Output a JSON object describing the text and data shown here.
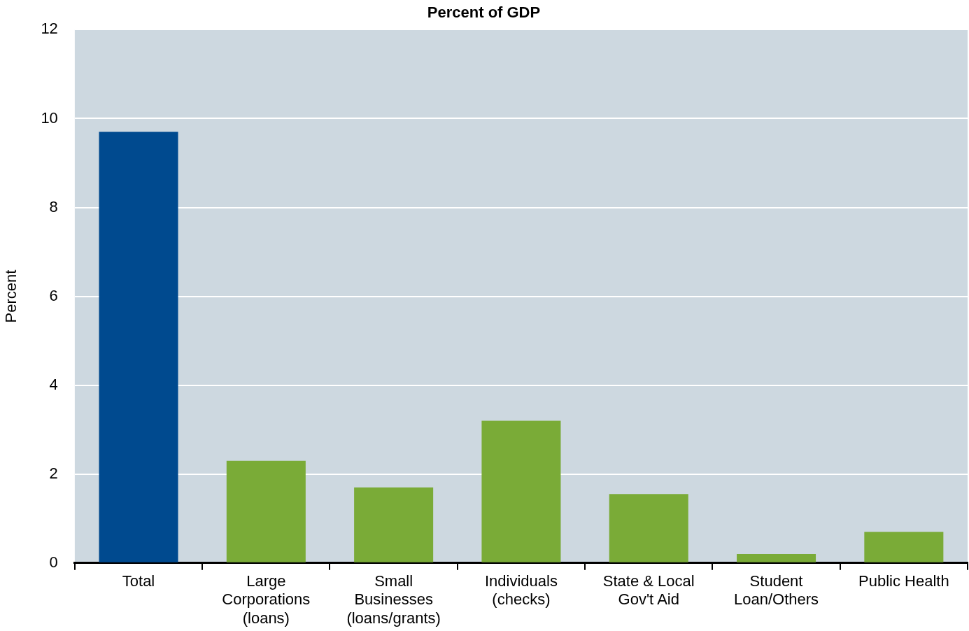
{
  "chart_data": {
    "type": "bar",
    "title": "Percent of GDP",
    "ylabel": "Percent",
    "categories": [
      "Total",
      "Large Corporations (loans)",
      "Small Businesses (loans/grants)",
      "Individuals (checks)",
      "State & Local Gov't Aid",
      "Student Loan/Others",
      "Public Health"
    ],
    "values": [
      9.7,
      2.3,
      1.7,
      3.2,
      1.55,
      0.2,
      0.7
    ],
    "colors": [
      "#004a8f",
      "#7aab37",
      "#7aab37",
      "#7aab37",
      "#7aab37",
      "#7aab37",
      "#7aab37"
    ],
    "ylim": [
      0,
      12
    ],
    "yticks": [
      0,
      2,
      4,
      6,
      8,
      10,
      12
    ],
    "grid": "y"
  }
}
